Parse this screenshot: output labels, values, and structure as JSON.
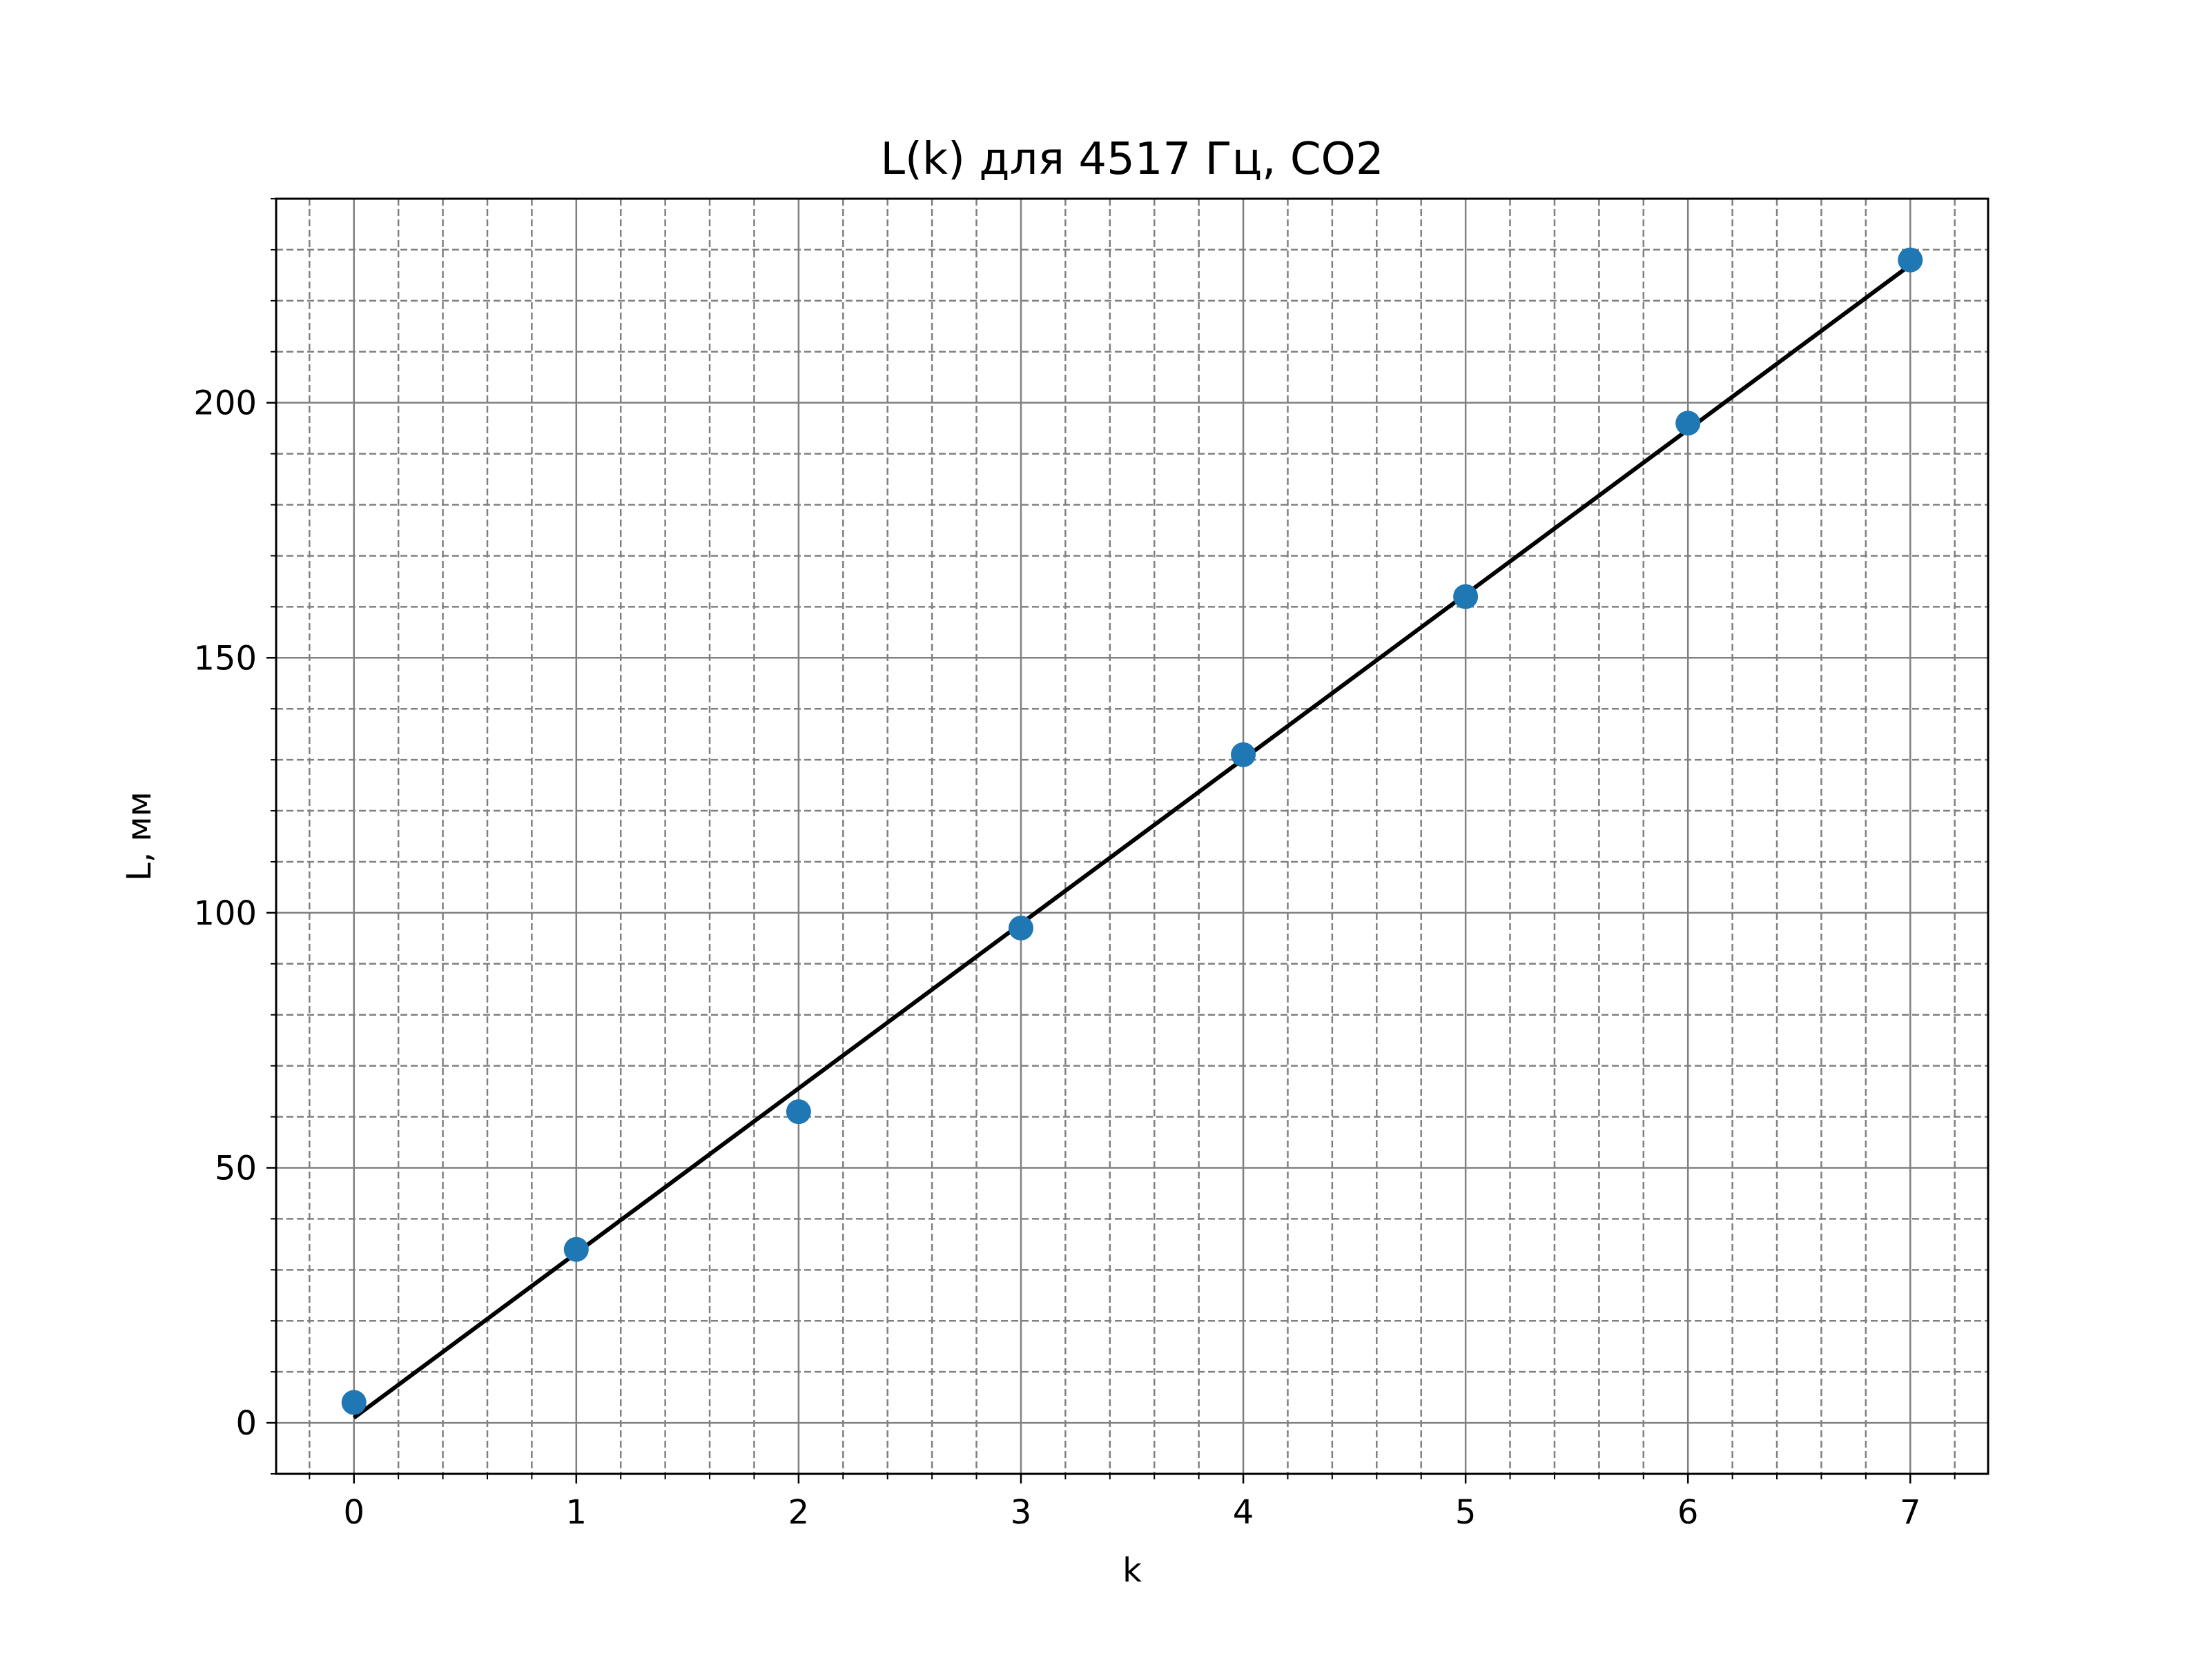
{
  "chart_data": {
    "type": "scatter",
    "title": "L(k) для 4517 Гц, CO2",
    "xlabel": "k",
    "ylabel": "L, мм",
    "xlim": [
      -0.35,
      7.35
    ],
    "ylim": [
      -10,
      240
    ],
    "xticks": [
      0,
      1,
      2,
      3,
      4,
      5,
      6,
      7
    ],
    "yticks": [
      0,
      50,
      100,
      150,
      200
    ],
    "x_minor_step": 0.2,
    "y_minor_step": 10,
    "grid": true,
    "series": [
      {
        "type": "scatter",
        "color": "#1f77b4",
        "x": [
          0,
          1,
          2,
          3,
          4,
          5,
          6,
          7
        ],
        "y": [
          4,
          34,
          61,
          97,
          131,
          162,
          196,
          228
        ]
      },
      {
        "type": "line",
        "color": "#000000",
        "x": [
          0,
          7
        ],
        "y": [
          1,
          227
        ]
      }
    ]
  }
}
